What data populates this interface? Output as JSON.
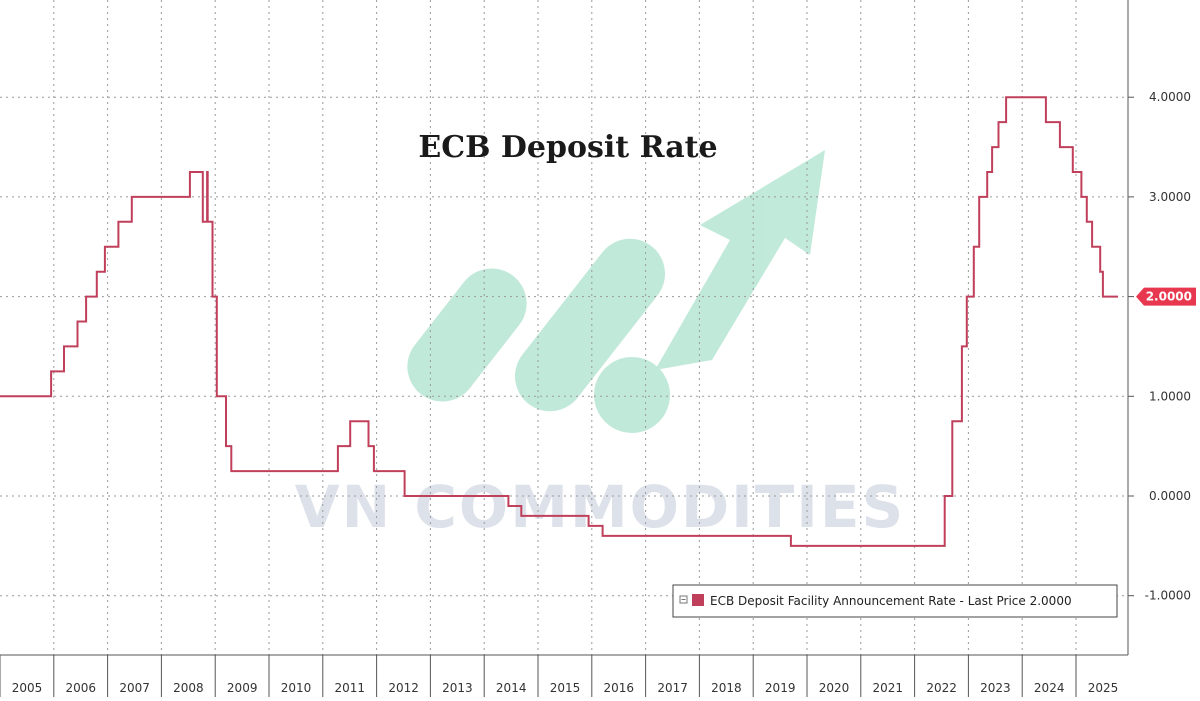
{
  "chart_data": {
    "type": "line",
    "title": "ECB Deposit Rate",
    "xlabel": "",
    "ylabel": "",
    "x_range": [
      2005.0,
      2025.78
    ],
    "ylim": [
      -1.6,
      4.9
    ],
    "grid": true,
    "legend_position": "bottom-right",
    "x_tick_labels": [
      "2005",
      "2006",
      "2007",
      "2008",
      "2009",
      "2010",
      "2011",
      "2012",
      "2013",
      "2014",
      "2015",
      "2016",
      "2017",
      "2018",
      "2019",
      "2020",
      "2021",
      "2022",
      "2023",
      "2024",
      "2025"
    ],
    "y_ticks": [
      4.0,
      3.0,
      2.0,
      1.0,
      0.0,
      -1.0
    ],
    "y_tick_labels": [
      "4.0000",
      "3.0000",
      "2.0000",
      "1.0000",
      "0.0000",
      "-1.0000"
    ],
    "last_value_label": "2.0000",
    "series": [
      {
        "name": "ECB Deposit Facility Announcement Rate - Last Price 2.0000",
        "color": "#c0405b",
        "step": true,
        "points": [
          [
            2005.0,
            1.0
          ],
          [
            2005.95,
            1.25
          ],
          [
            2006.19,
            1.5
          ],
          [
            2006.44,
            1.75
          ],
          [
            2006.6,
            2.0
          ],
          [
            2006.8,
            2.25
          ],
          [
            2006.95,
            2.5
          ],
          [
            2007.2,
            2.75
          ],
          [
            2007.45,
            3.0
          ],
          [
            2008.03,
            3.0
          ],
          [
            2008.53,
            3.25
          ],
          [
            2008.77,
            2.75
          ],
          [
            2008.85,
            3.25
          ],
          [
            2008.86,
            2.75
          ],
          [
            2008.95,
            2.0
          ],
          [
            2009.03,
            1.0
          ],
          [
            2009.2,
            0.5
          ],
          [
            2009.3,
            0.25
          ],
          [
            2011.28,
            0.5
          ],
          [
            2011.51,
            0.75
          ],
          [
            2011.85,
            0.5
          ],
          [
            2011.95,
            0.25
          ],
          [
            2012.52,
            0.0
          ],
          [
            2014.45,
            -0.1
          ],
          [
            2014.69,
            -0.2
          ],
          [
            2015.94,
            -0.3
          ],
          [
            2016.2,
            -0.4
          ],
          [
            2019.7,
            -0.5
          ],
          [
            2022.56,
            0.0
          ],
          [
            2022.7,
            0.75
          ],
          [
            2022.88,
            1.5
          ],
          [
            2022.97,
            2.0
          ],
          [
            2023.1,
            2.5
          ],
          [
            2023.2,
            3.0
          ],
          [
            2023.35,
            3.25
          ],
          [
            2023.44,
            3.5
          ],
          [
            2023.56,
            3.75
          ],
          [
            2023.7,
            4.0
          ],
          [
            2024.44,
            3.75
          ],
          [
            2024.7,
            3.5
          ],
          [
            2024.94,
            3.25
          ],
          [
            2025.1,
            3.0
          ],
          [
            2025.2,
            2.75
          ],
          [
            2025.3,
            2.5
          ],
          [
            2025.45,
            2.25
          ],
          [
            2025.5,
            2.0
          ],
          [
            2025.78,
            2.0
          ]
        ]
      }
    ]
  },
  "watermark": {
    "text": "VN COMMODITIES",
    "shape_color": "#8fd8bd",
    "text_color": "#dde2ea"
  },
  "colors": {
    "line": "#c0405b",
    "grid": "#9a9a9a",
    "axis": "#555555",
    "badge": "#e8384f"
  }
}
